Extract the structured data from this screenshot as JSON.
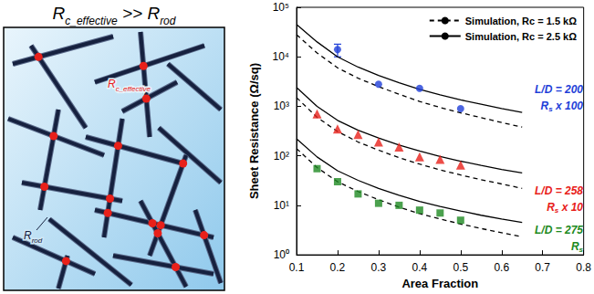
{
  "left_panel": {
    "title": [
      {
        "text": "R"
      },
      {
        "text": "c_effective",
        "sub": true
      },
      {
        "text": " >> R"
      },
      {
        "text": "rod",
        "sub": true
      }
    ],
    "contact_label": [
      {
        "text": "R"
      },
      {
        "text": "c_effective",
        "sub": true
      }
    ],
    "rod_label": [
      {
        "text": "R"
      },
      {
        "text": "rod",
        "sub": true
      }
    ]
  },
  "chart_data": {
    "type": "line",
    "x_label": "Area Fraction",
    "y_label": "Sheet Resistance (Ω/sq)",
    "log": "y",
    "grid": false,
    "legend": "top-right",
    "xlim": [
      0.1,
      0.8
    ],
    "xticks": [
      0.1,
      0.2,
      0.3,
      0.4,
      0.5,
      0.6,
      0.7,
      0.8
    ],
    "ylim": [
      1,
      100000
    ],
    "yticks": [
      {
        "value": 1,
        "label": "10⁰"
      },
      {
        "value": 10,
        "label": "10¹"
      },
      {
        "value": 100,
        "label": "10²"
      },
      {
        "value": 1000,
        "label": "10³"
      },
      {
        "value": 10000,
        "label": "10⁴"
      },
      {
        "value": 100000,
        "label": "10⁵"
      }
    ],
    "series": [
      {
        "name": "Simulation, Rc = 1.5 kΩ",
        "type": "line",
        "line_style": "dashed",
        "color": "#000000",
        "x": [
          0.1,
          0.15,
          0.2,
          0.25,
          0.3,
          0.35,
          0.4,
          0.45,
          0.5,
          0.55,
          0.6,
          0.65
        ],
        "values": [
          28000,
          12000,
          6000,
          3700,
          2500,
          1750,
          1250,
          950,
          740,
          590,
          470,
          380
        ]
      },
      {
        "name": "Simulation, Rc = 1.5 kΩ",
        "type": "line",
        "line_style": "dashed",
        "color": "#000000",
        "x": [
          0.1,
          0.15,
          0.2,
          0.25,
          0.3,
          0.35,
          0.4,
          0.45,
          0.5,
          0.55,
          0.6,
          0.65
        ],
        "values": [
          1500,
          600,
          310,
          190,
          130,
          92,
          68,
          52,
          41,
          33,
          27,
          22
        ]
      },
      {
        "name": "Simulation, Rc = 1.5 kΩ",
        "type": "line",
        "line_style": "dashed",
        "color": "#000000",
        "x": [
          0.1,
          0.15,
          0.2,
          0.25,
          0.3,
          0.35,
          0.4,
          0.45,
          0.5,
          0.55,
          0.6,
          0.65
        ],
        "values": [
          140,
          58,
          30,
          19,
          13,
          9.2,
          6.8,
          5.3,
          4.2,
          3.4,
          2.8,
          2.3
        ]
      },
      {
        "name": "Simulation, Rc = 2.5 kΩ",
        "type": "line",
        "line_style": "solid",
        "color": "#000000",
        "x": [
          0.1,
          0.15,
          0.2,
          0.25,
          0.3,
          0.35,
          0.4,
          0.45,
          0.5,
          0.55,
          0.6,
          0.65
        ],
        "values": [
          45000,
          20000,
          10000,
          6200,
          4200,
          3000,
          2200,
          1700,
          1350,
          1100,
          900,
          750
        ]
      },
      {
        "name": "Simulation, Rc = 2.5 kΩ",
        "type": "line",
        "line_style": "solid",
        "color": "#000000",
        "x": [
          0.1,
          0.15,
          0.2,
          0.25,
          0.3,
          0.35,
          0.4,
          0.45,
          0.5,
          0.55,
          0.6,
          0.65
        ],
        "values": [
          2400,
          1000,
          520,
          330,
          230,
          165,
          125,
          97,
          78,
          64,
          53,
          45
        ]
      },
      {
        "name": "Simulation, Rc = 2.5 kΩ",
        "type": "line",
        "line_style": "solid",
        "color": "#000000",
        "x": [
          0.1,
          0.15,
          0.2,
          0.25,
          0.3,
          0.35,
          0.4,
          0.45,
          0.5,
          0.55,
          0.6,
          0.65
        ],
        "values": [
          220,
          95,
          50,
          32,
          22,
          16,
          12,
          9.5,
          7.7,
          6.3,
          5.3,
          4.5
        ]
      },
      {
        "type": "scatter",
        "marker": "circle",
        "color": "#1f3fd8",
        "x": [
          0.2,
          0.3,
          0.4,
          0.5
        ],
        "values": [
          14000,
          2800,
          2300,
          900
        ],
        "errors": [
          [
            10000,
            18000
          ],
          null,
          null,
          null
        ]
      },
      {
        "type": "scatter",
        "marker": "triangle",
        "color": "#e8201a",
        "x": [
          0.15,
          0.2,
          0.25,
          0.3,
          0.35,
          0.4,
          0.45,
          0.5
        ],
        "values": [
          700,
          350,
          270,
          190,
          150,
          95,
          85,
          65
        ]
      },
      {
        "type": "scatter",
        "marker": "square",
        "color": "#1e8a22",
        "x": [
          0.15,
          0.2,
          0.25,
          0.3,
          0.35,
          0.4,
          0.45,
          0.5
        ],
        "values": [
          55,
          30,
          17,
          11,
          10,
          8,
          7,
          5
        ]
      }
    ],
    "annotations": [
      {
        "color": "#1f3fd8",
        "parts": [
          {
            "text": "L/D = 200"
          }
        ]
      },
      {
        "color": "#1f3fd8",
        "parts": [
          {
            "text": "R"
          },
          {
            "text": "s",
            "sub": true
          },
          {
            "text": " x 100"
          }
        ]
      },
      {
        "color": "#e8201a",
        "parts": [
          {
            "text": "L/D = 258"
          }
        ]
      },
      {
        "color": "#e8201a",
        "parts": [
          {
            "text": "R"
          },
          {
            "text": "s",
            "sub": true
          },
          {
            "text": " x 10"
          }
        ]
      },
      {
        "color": "#1e8a22",
        "parts": [
          {
            "text": "L/D = 275"
          }
        ]
      },
      {
        "color": "#1e8a22",
        "parts": [
          {
            "text": "R"
          },
          {
            "text": "s",
            "sub": true
          }
        ]
      }
    ]
  }
}
